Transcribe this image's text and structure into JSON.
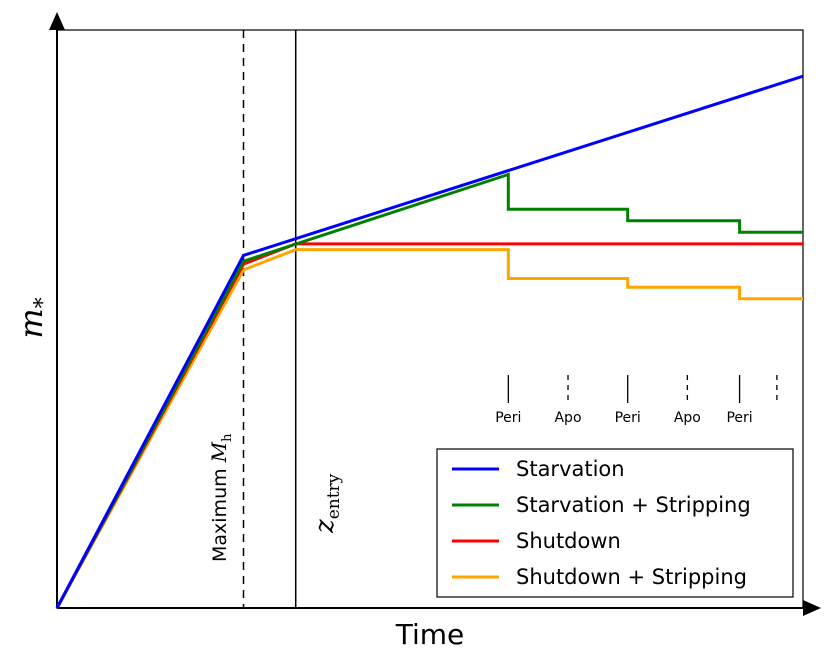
{
  "chart_data": {
    "type": "line",
    "title": "",
    "xlabel": "Time",
    "ylabel": "m",
    "ylabel_subscript": "*",
    "xlim": [
      0,
      100
    ],
    "ylim": [
      0,
      100
    ],
    "grid": false,
    "series": [
      {
        "name": "Starvation",
        "color": "#0000ff",
        "x": [
          0,
          25,
          100
        ],
        "y": [
          0,
          61,
          92
        ]
      },
      {
        "name": "Starvation + Stripping",
        "color": "#008000",
        "x": [
          0,
          25,
          60.5,
          60.5,
          76.5,
          76.5,
          91.5,
          91.5,
          100
        ],
        "y": [
          0,
          60,
          75,
          69,
          69,
          67,
          67,
          65,
          65
        ]
      },
      {
        "name": "Shutdown",
        "color": "#ff0000",
        "x": [
          0,
          25,
          32,
          100
        ],
        "y": [
          0,
          59.5,
          63,
          63
        ]
      },
      {
        "name": "Shutdown + Stripping",
        "color": "#ffa500",
        "x": [
          0,
          25,
          32,
          60.5,
          60.5,
          76.5,
          76.5,
          91.5,
          91.5,
          100
        ],
        "y": [
          0,
          58.5,
          62,
          62,
          57,
          57,
          55.5,
          55.5,
          53.5,
          53.5
        ]
      }
    ],
    "vlines": [
      {
        "x": 25,
        "style": "dashed",
        "label": "Maximum ",
        "label_math": "M",
        "label_sub": "h"
      },
      {
        "x": 32,
        "style": "solid",
        "label_math": "z",
        "label_sub": "entry"
      }
    ],
    "orbit_markers": [
      {
        "x": 60.5,
        "style": "solid",
        "label": "Peri"
      },
      {
        "x": 68.5,
        "style": "dashed",
        "label": "Apo"
      },
      {
        "x": 76.5,
        "style": "solid",
        "label": "Peri"
      },
      {
        "x": 84.5,
        "style": "dashed",
        "label": "Apo"
      },
      {
        "x": 91.5,
        "style": "solid",
        "label": "Peri"
      },
      {
        "x": 96.5,
        "style": "dashed",
        "label": ""
      }
    ],
    "legend": {
      "placement": "bottom-right",
      "entries": [
        "Starvation",
        "Starvation + Stripping",
        "Shutdown",
        "Shutdown + Stripping"
      ]
    }
  }
}
